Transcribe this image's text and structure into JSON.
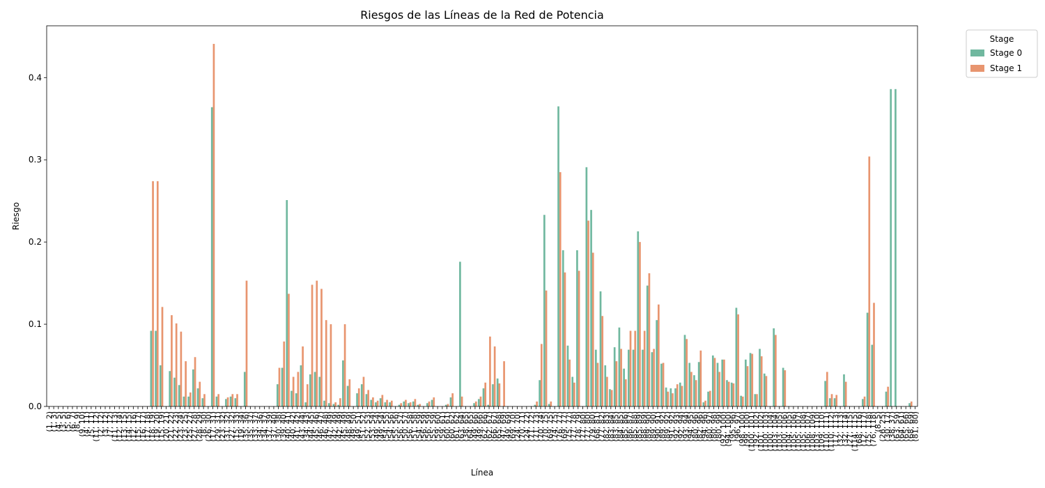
{
  "chart_data": {
    "type": "bar",
    "title": "Riesgos de las Líneas de la Red de Potencia",
    "xlabel": "Línea",
    "ylabel": "Riesgo",
    "legend_title": "Stage",
    "legend_position": "outside upper right",
    "ylim": [
      0,
      0.463
    ],
    "yticks": [
      {
        "value": 0,
        "label": "0.0"
      },
      0.1,
      0.2,
      0.3,
      0.4
    ],
    "categories": [
      "(1, 2)",
      "(1, 3)",
      "(4, 5)",
      "(3, 5)",
      "(5, 6)",
      "(6, 7)",
      "(8, 9)",
      "(9, 10)",
      "(4, 11)",
      "(5, 11)",
      "(11, 12)",
      "(2, 12)",
      "(3, 12)",
      "(7, 12)",
      "(11, 13)",
      "(12, 14)",
      "(13, 15)",
      "(14, 15)",
      "(12, 16)",
      "(15, 17)",
      "(16, 17)",
      "(17, 18)",
      "(18, 19)",
      "(19, 20)",
      "(15, 19)",
      "(20, 21)",
      "(21, 22)",
      "(22, 23)",
      "(23, 24)",
      "(23, 25)",
      "(25, 27)",
      "(27, 28)",
      "(28, 29)",
      "(8, 30)",
      "(26, 30)",
      "(17, 31)",
      "(29, 31)",
      "(23, 32)",
      "(31, 32)",
      "(27, 32)",
      "(15, 33)",
      "(19, 34)",
      "(35, 36)",
      "(35, 37)",
      "(33, 37)",
      "(34, 36)",
      "(34, 37)",
      "(37, 39)",
      "(37, 40)",
      "(30, 38)",
      "(39, 40)",
      "(40, 41)",
      "(40, 42)",
      "(41, 42)",
      "(43, 44)",
      "(34, 43)",
      "(44, 45)",
      "(45, 46)",
      "(46, 47)",
      "(46, 48)",
      "(47, 49)",
      "(42, 49)",
      "(42, 49)",
      "(45, 49)",
      "(48, 49)",
      "(49, 50)",
      "(49, 51)",
      "(51, 52)",
      "(52, 53)",
      "(53, 54)",
      "(49, 54)",
      "(49, 54)",
      "(54, 55)",
      "(54, 56)",
      "(55, 56)",
      "(56, 57)",
      "(50, 57)",
      "(56, 58)",
      "(51, 58)",
      "(54, 59)",
      "(56, 59)",
      "(56, 59)",
      "(55, 59)",
      "(59, 60)",
      "(59, 61)",
      "(60, 61)",
      "(60, 62)",
      "(61, 62)",
      "(63, 64)",
      "(38, 65)",
      "(64, 65)",
      "(49, 66)",
      "(49, 66)",
      "(62, 66)",
      "(62, 67)",
      "(66, 67)",
      "(65, 68)",
      "(47, 69)",
      "(49, 69)",
      "(69, 70)",
      "(24, 70)",
      "(70, 71)",
      "(24, 72)",
      "(71, 72)",
      "(71, 73)",
      "(70, 74)",
      "(70, 75)",
      "(69, 75)",
      "(74, 75)",
      "(76, 77)",
      "(69, 77)",
      "(75, 77)",
      "(77, 78)",
      "(78, 79)",
      "(77, 80)",
      "(77, 80)",
      "(79, 80)",
      "(68, 81)",
      "(77, 82)",
      "(82, 83)",
      "(83, 84)",
      "(83, 85)",
      "(84, 85)",
      "(85, 86)",
      "(86, 87)",
      "(85, 88)",
      "(85, 89)",
      "(88, 89)",
      "(89, 90)",
      "(89, 90)",
      "(90, 91)",
      "(89, 92)",
      "(89, 92)",
      "(91, 92)",
      "(92, 93)",
      "(92, 94)",
      "(93, 94)",
      "(94, 95)",
      "(80, 96)",
      "(82, 96)",
      "(94, 96)",
      "(80, 97)",
      "(80, 98)",
      "(80, 99)",
      "(92, 100)",
      "(94, 100)",
      "(95, 96)",
      "(96, 97)",
      "(98, 100)",
      "(99, 100)",
      "(100, 101)",
      "(92, 102)",
      "(101, 102)",
      "(100, 103)",
      "(100, 104)",
      "(103, 104)",
      "(103, 105)",
      "(100, 106)",
      "(104, 105)",
      "(105, 106)",
      "(105, 107)",
      "(105, 108)",
      "(106, 107)",
      "(108, 109)",
      "(103, 110)",
      "(109, 110)",
      "(110, 111)",
      "(110, 112)",
      "(17, 113)",
      "(32, 113)",
      "(32, 114)",
      "(27, 115)",
      "(114, 115)",
      "(68, 116)",
      "(12, 117)",
      "(75, 118)",
      "(76, 118)",
      "(8, 5)",
      "(26, 25)",
      "(30, 17)",
      "(38, 37)",
      "(63, 59)",
      "(64, 61)",
      "(65, 66)",
      "(68, 69)",
      "(81, 80)"
    ],
    "series": [
      {
        "name": "Stage 0",
        "color": "#70b89f",
        "values": [
          0,
          0,
          0,
          0,
          0,
          0,
          0,
          0,
          0,
          0,
          0,
          0,
          0,
          0,
          0,
          0,
          0,
          0,
          0,
          0,
          0,
          0,
          0.092,
          0.092,
          0.05,
          0,
          0.043,
          0.035,
          0.026,
          0.012,
          0.012,
          0.045,
          0.022,
          0.01,
          0,
          0.364,
          0.012,
          0,
          0.009,
          0.012,
          0.01,
          0,
          0.042,
          0,
          0,
          0,
          0,
          0,
          0,
          0.027,
          0.047,
          0.251,
          0.019,
          0.016,
          0.05,
          0.005,
          0.039,
          0.042,
          0.036,
          0.007,
          0.004,
          0.003,
          0.002,
          0.056,
          0.025,
          0,
          0.016,
          0.027,
          0.015,
          0.008,
          0.005,
          0.01,
          0.005,
          0.005,
          0,
          0.002,
          0.006,
          0.004,
          0.006,
          0.002,
          0,
          0.004,
          0.008,
          0,
          0,
          0.002,
          0.011,
          0,
          0.176,
          0,
          0,
          0.004,
          0.009,
          0.022,
          0.002,
          0.027,
          0.034,
          0,
          0,
          0,
          0,
          0,
          0,
          0,
          0.002,
          0.032,
          0.233,
          0.003,
          0,
          0.365,
          0.19,
          0.074,
          0.036,
          0.19,
          0,
          0.291,
          0.239,
          0.069,
          0.14,
          0.05,
          0.021,
          0.072,
          0.096,
          0.046,
          0.069,
          0.069,
          0.213,
          0.069,
          0.147,
          0.066,
          0.105,
          0.052,
          0.023,
          0.022,
          0.022,
          0.029,
          0.087,
          0.053,
          0.038,
          0.054,
          0.005,
          0.018,
          0.062,
          0.053,
          0.057,
          0.032,
          0.029,
          0.12,
          0.013,
          0.057,
          0.065,
          0.015,
          0.07,
          0.04,
          0,
          0.095,
          0,
          0.047,
          0,
          0,
          0,
          0,
          0,
          0,
          0,
          0,
          0.031,
          0.01,
          0.01,
          0,
          0.039,
          0,
          0,
          0,
          0.009,
          0.114,
          0.075,
          0,
          0,
          0.018,
          0.386,
          0.386,
          0,
          0,
          0.004,
          0
        ]
      },
      {
        "name": "Stage 1",
        "color": "#e8956f",
        "values": [
          0,
          0,
          0,
          0,
          0,
          0,
          0,
          0,
          0,
          0,
          0,
          0,
          0,
          0,
          0,
          0,
          0,
          0,
          0,
          0,
          0,
          0,
          0.274,
          0.274,
          0.121,
          0,
          0.111,
          0.101,
          0.091,
          0.055,
          0.017,
          0.06,
          0.03,
          0.015,
          0,
          0.441,
          0.015,
          0,
          0.011,
          0.015,
          0.015,
          0,
          0.153,
          0,
          0,
          0,
          0,
          0,
          0,
          0.047,
          0.079,
          0.137,
          0.036,
          0.042,
          0.073,
          0.027,
          0.148,
          0.153,
          0.143,
          0.105,
          0.1,
          0.005,
          0.01,
          0.1,
          0.033,
          0,
          0.022,
          0.036,
          0.02,
          0.011,
          0.007,
          0.014,
          0.008,
          0.007,
          0,
          0.004,
          0.008,
          0.005,
          0.009,
          0.003,
          0,
          0.006,
          0.011,
          0,
          0,
          0.003,
          0.016,
          0,
          0.012,
          0,
          0,
          0.006,
          0.012,
          0.029,
          0.085,
          0.073,
          0.028,
          0.055,
          0,
          0,
          0,
          0,
          0,
          0,
          0.006,
          0.076,
          0.141,
          0.006,
          0,
          0.285,
          0.163,
          0.057,
          0.029,
          0.165,
          0,
          0.226,
          0.187,
          0.053,
          0.11,
          0.036,
          0.02,
          0.055,
          0.07,
          0.033,
          0.092,
          0.092,
          0.2,
          0.092,
          0.162,
          0.07,
          0.124,
          0.053,
          0.018,
          0.016,
          0.027,
          0.025,
          0.082,
          0.042,
          0.032,
          0.068,
          0.007,
          0.019,
          0.059,
          0.042,
          0.057,
          0.03,
          0.028,
          0.112,
          0.012,
          0.049,
          0.064,
          0.015,
          0.061,
          0.037,
          0,
          0.087,
          0,
          0.044,
          0,
          0,
          0,
          0,
          0,
          0,
          0,
          0,
          0.042,
          0.015,
          0.014,
          0,
          0.03,
          0,
          0,
          0,
          0.012,
          0.304,
          0.126,
          0,
          0,
          0.024,
          0,
          0,
          0,
          0,
          0.006,
          0
        ]
      }
    ]
  }
}
